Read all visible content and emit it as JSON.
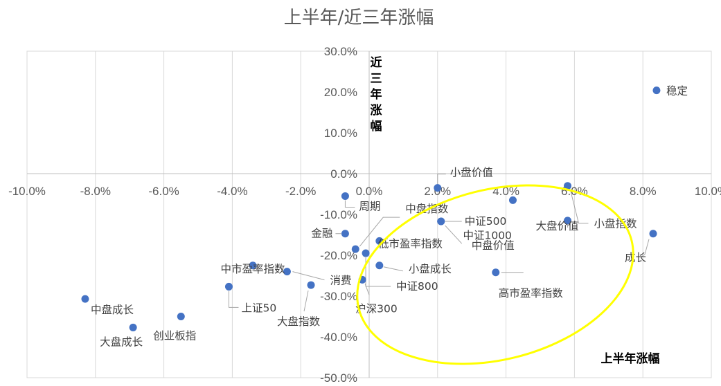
{
  "chart_data": {
    "type": "scatter",
    "title": "上半年/近三年涨幅",
    "xlabel": "上半年涨幅",
    "ylabel": "近三年涨幅",
    "xlim": [
      -0.1,
      0.1
    ],
    "ylim": [
      -0.5,
      0.3
    ],
    "x_ticks": [
      "-10.0%",
      "-8.0%",
      "-6.0%",
      "-4.0%",
      "-2.0%",
      "0.0%",
      "2.0%",
      "4.0%",
      "6.0%",
      "8.0%",
      "10.0%"
    ],
    "y_ticks": [
      "30.0%",
      "20.0%",
      "10.0%",
      "0.0%",
      "-10.0%",
      "-20.0%",
      "-30.0%",
      "-40.0%",
      "-50.0%"
    ],
    "grid": "vertical gridlines",
    "marker_color": "#4472C4",
    "annotation": {
      "shape": "ellipse",
      "color": "#FFFF00"
    },
    "points": [
      {
        "label": "稳定",
        "x": 0.084,
        "y": 0.204
      },
      {
        "label": "小盘价值",
        "x": 0.02,
        "y": -0.035
      },
      {
        "label": "小盘指数",
        "x": 0.058,
        "y": -0.03
      },
      {
        "label": "中证1000",
        "x": 0.042,
        "y": -0.065
      },
      {
        "label": "中证500",
        "x": 0.021,
        "y": -0.117
      },
      {
        "label": "成长",
        "x": 0.083,
        "y": -0.147
      },
      {
        "label": "中盘价值",
        "x": 0.021,
        "y": -0.117
      },
      {
        "label": "大盘价值",
        "x": 0.058,
        "y": -0.115
      },
      {
        "label": "周期",
        "x": -0.007,
        "y": -0.055
      },
      {
        "label": "中盘指数",
        "x": -0.004,
        "y": -0.185
      },
      {
        "label": "金融",
        "x": -0.007,
        "y": -0.147
      },
      {
        "label": "低市盈率指数",
        "x": 0.003,
        "y": -0.165
      },
      {
        "label": "小盘成长",
        "x": 0.003,
        "y": -0.225
      },
      {
        "label": "中证800",
        "x": -0.001,
        "y": -0.195
      },
      {
        "label": "沪深300",
        "x": -0.002,
        "y": -0.26
      },
      {
        "label": "高市盈率指数",
        "x": 0.037,
        "y": -0.242
      },
      {
        "label": "中市盈率指数",
        "x": -0.034,
        "y": -0.225
      },
      {
        "label": "消费",
        "x": -0.024,
        "y": -0.24
      },
      {
        "label": "上证50",
        "x": -0.041,
        "y": -0.277
      },
      {
        "label": "大盘指数",
        "x": -0.017,
        "y": -0.273
      },
      {
        "label": "中盘成长",
        "x": -0.083,
        "y": -0.307
      },
      {
        "label": "大盘成长",
        "x": -0.069,
        "y": -0.377
      },
      {
        "label": "创业板指",
        "x": -0.055,
        "y": -0.35
      }
    ]
  }
}
